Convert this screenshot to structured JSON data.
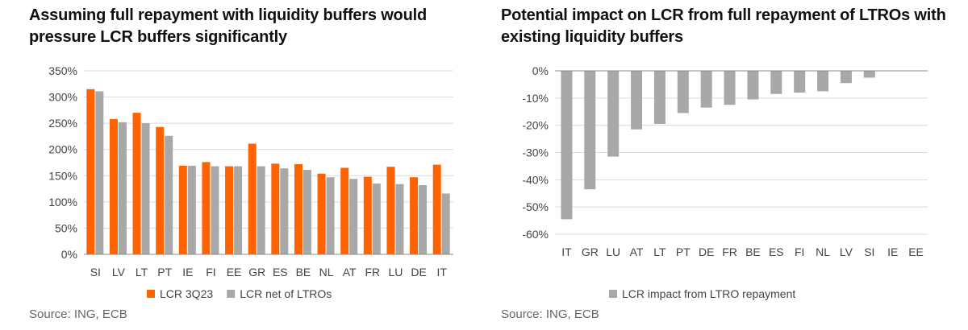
{
  "charts": [
    {
      "title": "Assuming full repayment with liquidity buffers would pressure LCR buffers significantly",
      "source": "Source: ING, ECB",
      "colors": {
        "s0": "#ff6200",
        "s1": "#a8a8a8",
        "grid": "#dcdcdc",
        "axis": "#888888"
      }
    },
    {
      "title": "Potential impact on LCR from full repayment of LTROs with existing liquidity buffers",
      "source": "Source: ING, ECB",
      "colors": {
        "s0": "#a8a8a8",
        "grid": "#dcdcdc",
        "axis": "#888888"
      }
    }
  ],
  "chart_data": [
    {
      "type": "bar",
      "title": "Assuming full repayment with liquidity buffers would pressure LCR buffers significantly",
      "categories": [
        "SI",
        "LV",
        "LT",
        "PT",
        "IE",
        "FI",
        "EE",
        "GR",
        "ES",
        "BE",
        "NL",
        "AT",
        "FR",
        "LU",
        "DE",
        "IT"
      ],
      "series": [
        {
          "name": "LCR 3Q23",
          "values": [
            315,
            258,
            270,
            243,
            169,
            176,
            168,
            211,
            173,
            172,
            154,
            165,
            148,
            167,
            147,
            171
          ]
        },
        {
          "name": "LCR net of LTROs",
          "values": [
            311,
            252,
            250,
            226,
            169,
            168,
            168,
            168,
            164,
            161,
            147,
            144,
            135,
            134,
            132,
            116
          ]
        }
      ],
      "ylim": [
        0,
        350
      ],
      "yticks": [
        0,
        50,
        100,
        150,
        200,
        250,
        300,
        350
      ],
      "ytick_labels": [
        "0%",
        "50%",
        "100%",
        "150%",
        "200%",
        "250%",
        "300%",
        "350%"
      ],
      "xlabel": "",
      "ylabel": "",
      "grid": true,
      "legend": "bottom-center"
    },
    {
      "type": "bar",
      "title": "Potential impact on LCR from full repayment of LTROs with existing liquidity buffers",
      "categories": [
        "IT",
        "GR",
        "LU",
        "AT",
        "LT",
        "PT",
        "DE",
        "FR",
        "BE",
        "ES",
        "FI",
        "NL",
        "LV",
        "SI",
        "IE",
        "EE"
      ],
      "series": [
        {
          "name": "LCR impact from LTRO repayment",
          "values": [
            -54.5,
            -43.5,
            -31.5,
            -21.5,
            -19.5,
            -15.5,
            -13.5,
            -12.5,
            -10.5,
            -8.5,
            -8,
            -7.5,
            -4.5,
            -2.5,
            0,
            0
          ]
        }
      ],
      "ylim": [
        -60,
        0
      ],
      "yticks": [
        0,
        -10,
        -20,
        -30,
        -40,
        -50,
        -60
      ],
      "ytick_labels": [
        "0%",
        "-10%",
        "-20%",
        "-30%",
        "-40%",
        "-50%",
        "-60%"
      ],
      "xlabel": "",
      "ylabel": "",
      "grid": true,
      "legend": "bottom-center"
    }
  ]
}
